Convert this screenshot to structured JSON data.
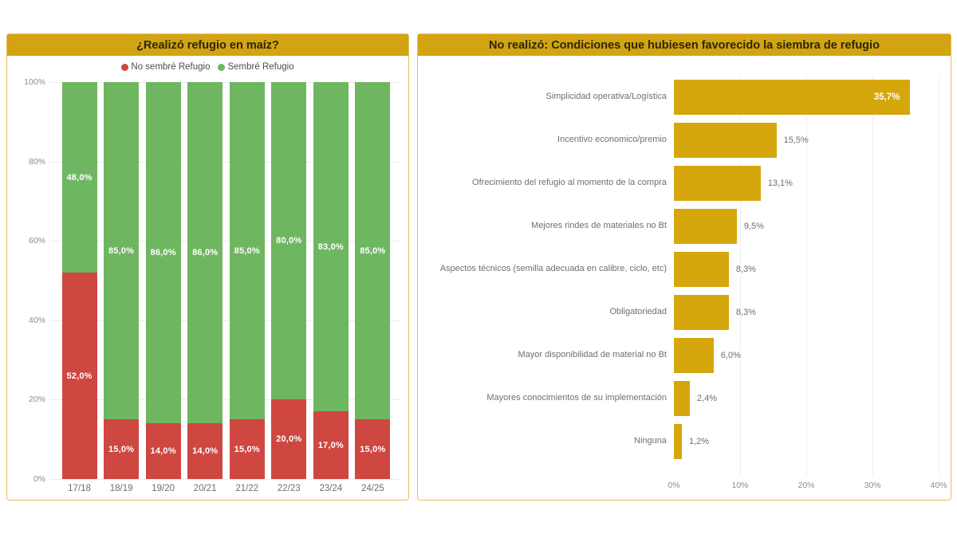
{
  "theme": {
    "accent_gold": "#d2a412",
    "panel_border": "#e9bc5e",
    "title_text": "#2e2506",
    "grid_color": "#ececec",
    "axis_text": "#8c8c8c",
    "category_text": "#6f6f6f",
    "red": "#ce4740",
    "green": "#6fb661",
    "gold_bar": "#d5a70d"
  },
  "chart_data": [
    {
      "type": "bar",
      "stacked": true,
      "orientation": "vertical",
      "title": "¿Realizó refugio en maíz?",
      "categories": [
        "17/18",
        "18/19",
        "19/20",
        "20/21",
        "21/22",
        "22/23",
        "23/24",
        "24/25"
      ],
      "series": [
        {
          "name": "No sembré Refugio",
          "color": "#ce4740",
          "values": [
            52,
            15,
            14,
            14,
            15,
            20,
            17,
            15
          ],
          "labels": [
            "52,0%",
            "15,0%",
            "14,0%",
            "14,0%",
            "15,0%",
            "20,0%",
            "17,0%",
            "15,0%"
          ]
        },
        {
          "name": "Sembré Refugio",
          "color": "#6fb661",
          "values": [
            48,
            85,
            86,
            86,
            85,
            80,
            83,
            85
          ],
          "labels": [
            "48,0%",
            "85,0%",
            "86,0%",
            "86,0%",
            "85,0%",
            "80,0%",
            "83,0%",
            "85,0%"
          ]
        }
      ],
      "y_ticks": [
        "100%",
        "80%",
        "60%",
        "40%",
        "20%",
        "0%"
      ],
      "ylim": [
        0,
        100
      ],
      "grid": true,
      "legend_position": "top"
    },
    {
      "type": "bar",
      "orientation": "horizontal",
      "title": "No realizó: Condiciones que hubiesen favorecido la siembra de refugio",
      "categories": [
        "Simplicidad operativa/Logística",
        "Incentivo economico/premio",
        "Ofrecimiento del refugio al momento de la compra",
        "Mejores rindes de materiales no Bt",
        "Aspectos técnicos (semilla adecuada en calibre, ciclo, etc)",
        "Obligatoriedad",
        "Mayor disponibilidad de material no Bt",
        "Mayores conocimientos de su implementación",
        "Ninguna"
      ],
      "values": [
        35.7,
        15.5,
        13.1,
        9.5,
        8.3,
        8.3,
        6.0,
        2.4,
        1.2
      ],
      "labels": [
        "35,7%",
        "15,5%",
        "13,1%",
        "9,5%",
        "8,3%",
        "8,3%",
        "6,0%",
        "2,4%",
        "1,2%"
      ],
      "inside_label_indexes": [
        0
      ],
      "x_ticks": [
        "0%",
        "10%",
        "20%",
        "30%",
        "40%"
      ],
      "xlim": [
        0,
        40
      ],
      "bar_color": "#d5a70d",
      "grid": true,
      "legend_position": "none"
    }
  ]
}
